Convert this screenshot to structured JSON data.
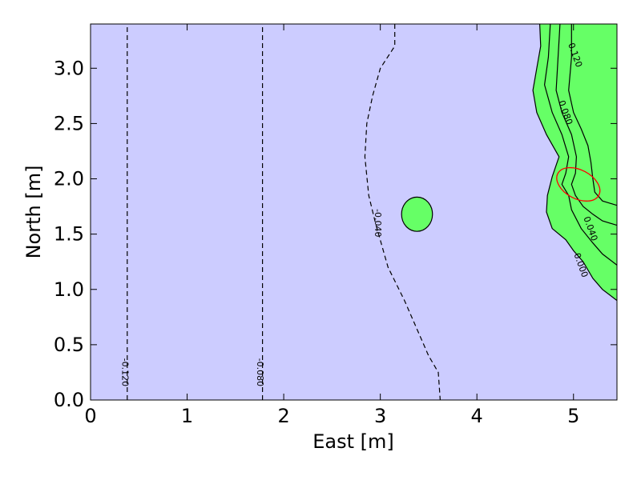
{
  "chart_data": {
    "type": "contour",
    "title": "",
    "xlabel": "East [m]",
    "ylabel": "North [m]",
    "xlim": [
      0,
      5.45
    ],
    "ylim": [
      0,
      3.4
    ],
    "x_ticks": [
      "0",
      "1",
      "2",
      "3",
      "4",
      "5"
    ],
    "y_ticks": [
      "0.0",
      "0.5",
      "1.0",
      "1.5",
      "2.0",
      "2.5",
      "3.0"
    ],
    "x_tick_values": [
      0,
      1,
      2,
      3,
      4,
      5
    ],
    "y_tick_values": [
      0,
      0.5,
      1,
      1.5,
      2,
      2.5,
      3
    ],
    "fill_colors": {
      "negative": "#ccccff",
      "positive": "#66ff66"
    },
    "contours": [
      {
        "level": "-0.120",
        "style": "dashed",
        "points": [
          [
            0.38,
            0
          ],
          [
            0.38,
            3.4
          ]
        ],
        "label_at": [
          0.36,
          0.25
        ]
      },
      {
        "level": "-0.080",
        "style": "dashed",
        "points": [
          [
            1.78,
            0
          ],
          [
            1.78,
            3.4
          ]
        ],
        "label_at": [
          1.76,
          0.25
        ]
      },
      {
        "level": "-0.040",
        "style": "dashed",
        "points": [
          [
            3.15,
            3.4
          ],
          [
            3.15,
            3.2
          ],
          [
            3.0,
            3.0
          ],
          [
            2.92,
            2.75
          ],
          [
            2.86,
            2.5
          ],
          [
            2.84,
            2.2
          ],
          [
            2.88,
            1.85
          ],
          [
            2.95,
            1.6
          ],
          [
            3.08,
            1.2
          ],
          [
            3.25,
            0.9
          ],
          [
            3.4,
            0.6
          ],
          [
            3.5,
            0.4
          ],
          [
            3.6,
            0.25
          ],
          [
            3.62,
            0
          ]
        ],
        "label_at": [
          2.98,
          1.6
        ]
      },
      {
        "level": "0.000",
        "style": "solid",
        "points": [
          [
            4.65,
            3.4
          ],
          [
            4.66,
            3.2
          ],
          [
            4.62,
            3.0
          ],
          [
            4.58,
            2.8
          ],
          [
            4.62,
            2.6
          ],
          [
            4.72,
            2.4
          ],
          [
            4.85,
            2.2
          ],
          [
            4.78,
            2.02
          ],
          [
            4.73,
            1.85
          ],
          [
            4.72,
            1.7
          ],
          [
            4.78,
            1.55
          ],
          [
            4.92,
            1.45
          ],
          [
            5.0,
            1.35
          ],
          [
            5.1,
            1.25
          ],
          [
            5.2,
            1.1
          ],
          [
            5.3,
            1.0
          ],
          [
            5.45,
            0.9
          ]
        ],
        "label_at": [
          5.08,
          1.22
        ]
      },
      {
        "level": "0.040",
        "style": "solid",
        "points": [
          [
            4.76,
            3.4
          ],
          [
            4.74,
            3.1
          ],
          [
            4.7,
            2.85
          ],
          [
            4.78,
            2.6
          ],
          [
            4.88,
            2.4
          ],
          [
            4.95,
            2.2
          ],
          [
            4.92,
            2.05
          ],
          [
            4.88,
            1.95
          ],
          [
            4.95,
            1.85
          ],
          [
            4.98,
            1.72
          ],
          [
            5.08,
            1.55
          ],
          [
            5.2,
            1.42
          ],
          [
            5.3,
            1.32
          ],
          [
            5.45,
            1.22
          ]
        ],
        "label_at": [
          5.18,
          1.55
        ]
      },
      {
        "level": "0.080",
        "style": "solid",
        "points": [
          [
            4.86,
            3.4
          ],
          [
            4.84,
            3.1
          ],
          [
            4.82,
            2.8
          ],
          [
            4.88,
            2.6
          ],
          [
            4.98,
            2.4
          ],
          [
            5.03,
            2.2
          ],
          [
            5.02,
            2.05
          ],
          [
            4.98,
            1.95
          ],
          [
            5.02,
            1.85
          ],
          [
            5.1,
            1.75
          ],
          [
            5.2,
            1.68
          ],
          [
            5.3,
            1.62
          ],
          [
            5.45,
            1.58
          ]
        ],
        "label_at": [
          4.92,
          2.6
        ]
      },
      {
        "level": "0.120",
        "style": "solid",
        "points": [
          [
            4.98,
            3.4
          ],
          [
            4.98,
            3.1
          ],
          [
            4.95,
            2.8
          ],
          [
            5.0,
            2.6
          ],
          [
            5.08,
            2.45
          ],
          [
            5.15,
            2.3
          ],
          [
            5.18,
            2.15
          ],
          [
            5.2,
            2.0
          ],
          [
            5.22,
            1.88
          ],
          [
            5.3,
            1.8
          ],
          [
            5.45,
            1.76
          ]
        ],
        "label_at": [
          5.02,
          3.12
        ]
      }
    ],
    "blobs": [
      {
        "type": "ellipse",
        "cx": 3.38,
        "cy": 1.68,
        "rx": 0.16,
        "ry": 0.155,
        "fill": "#66ff66",
        "stroke": "#000000"
      }
    ],
    "marker_ellipse": {
      "cx": 5.05,
      "cy": 1.95,
      "rx": 0.24,
      "ry": 0.13,
      "angle_deg": -28,
      "stroke": "#ff0000"
    }
  }
}
